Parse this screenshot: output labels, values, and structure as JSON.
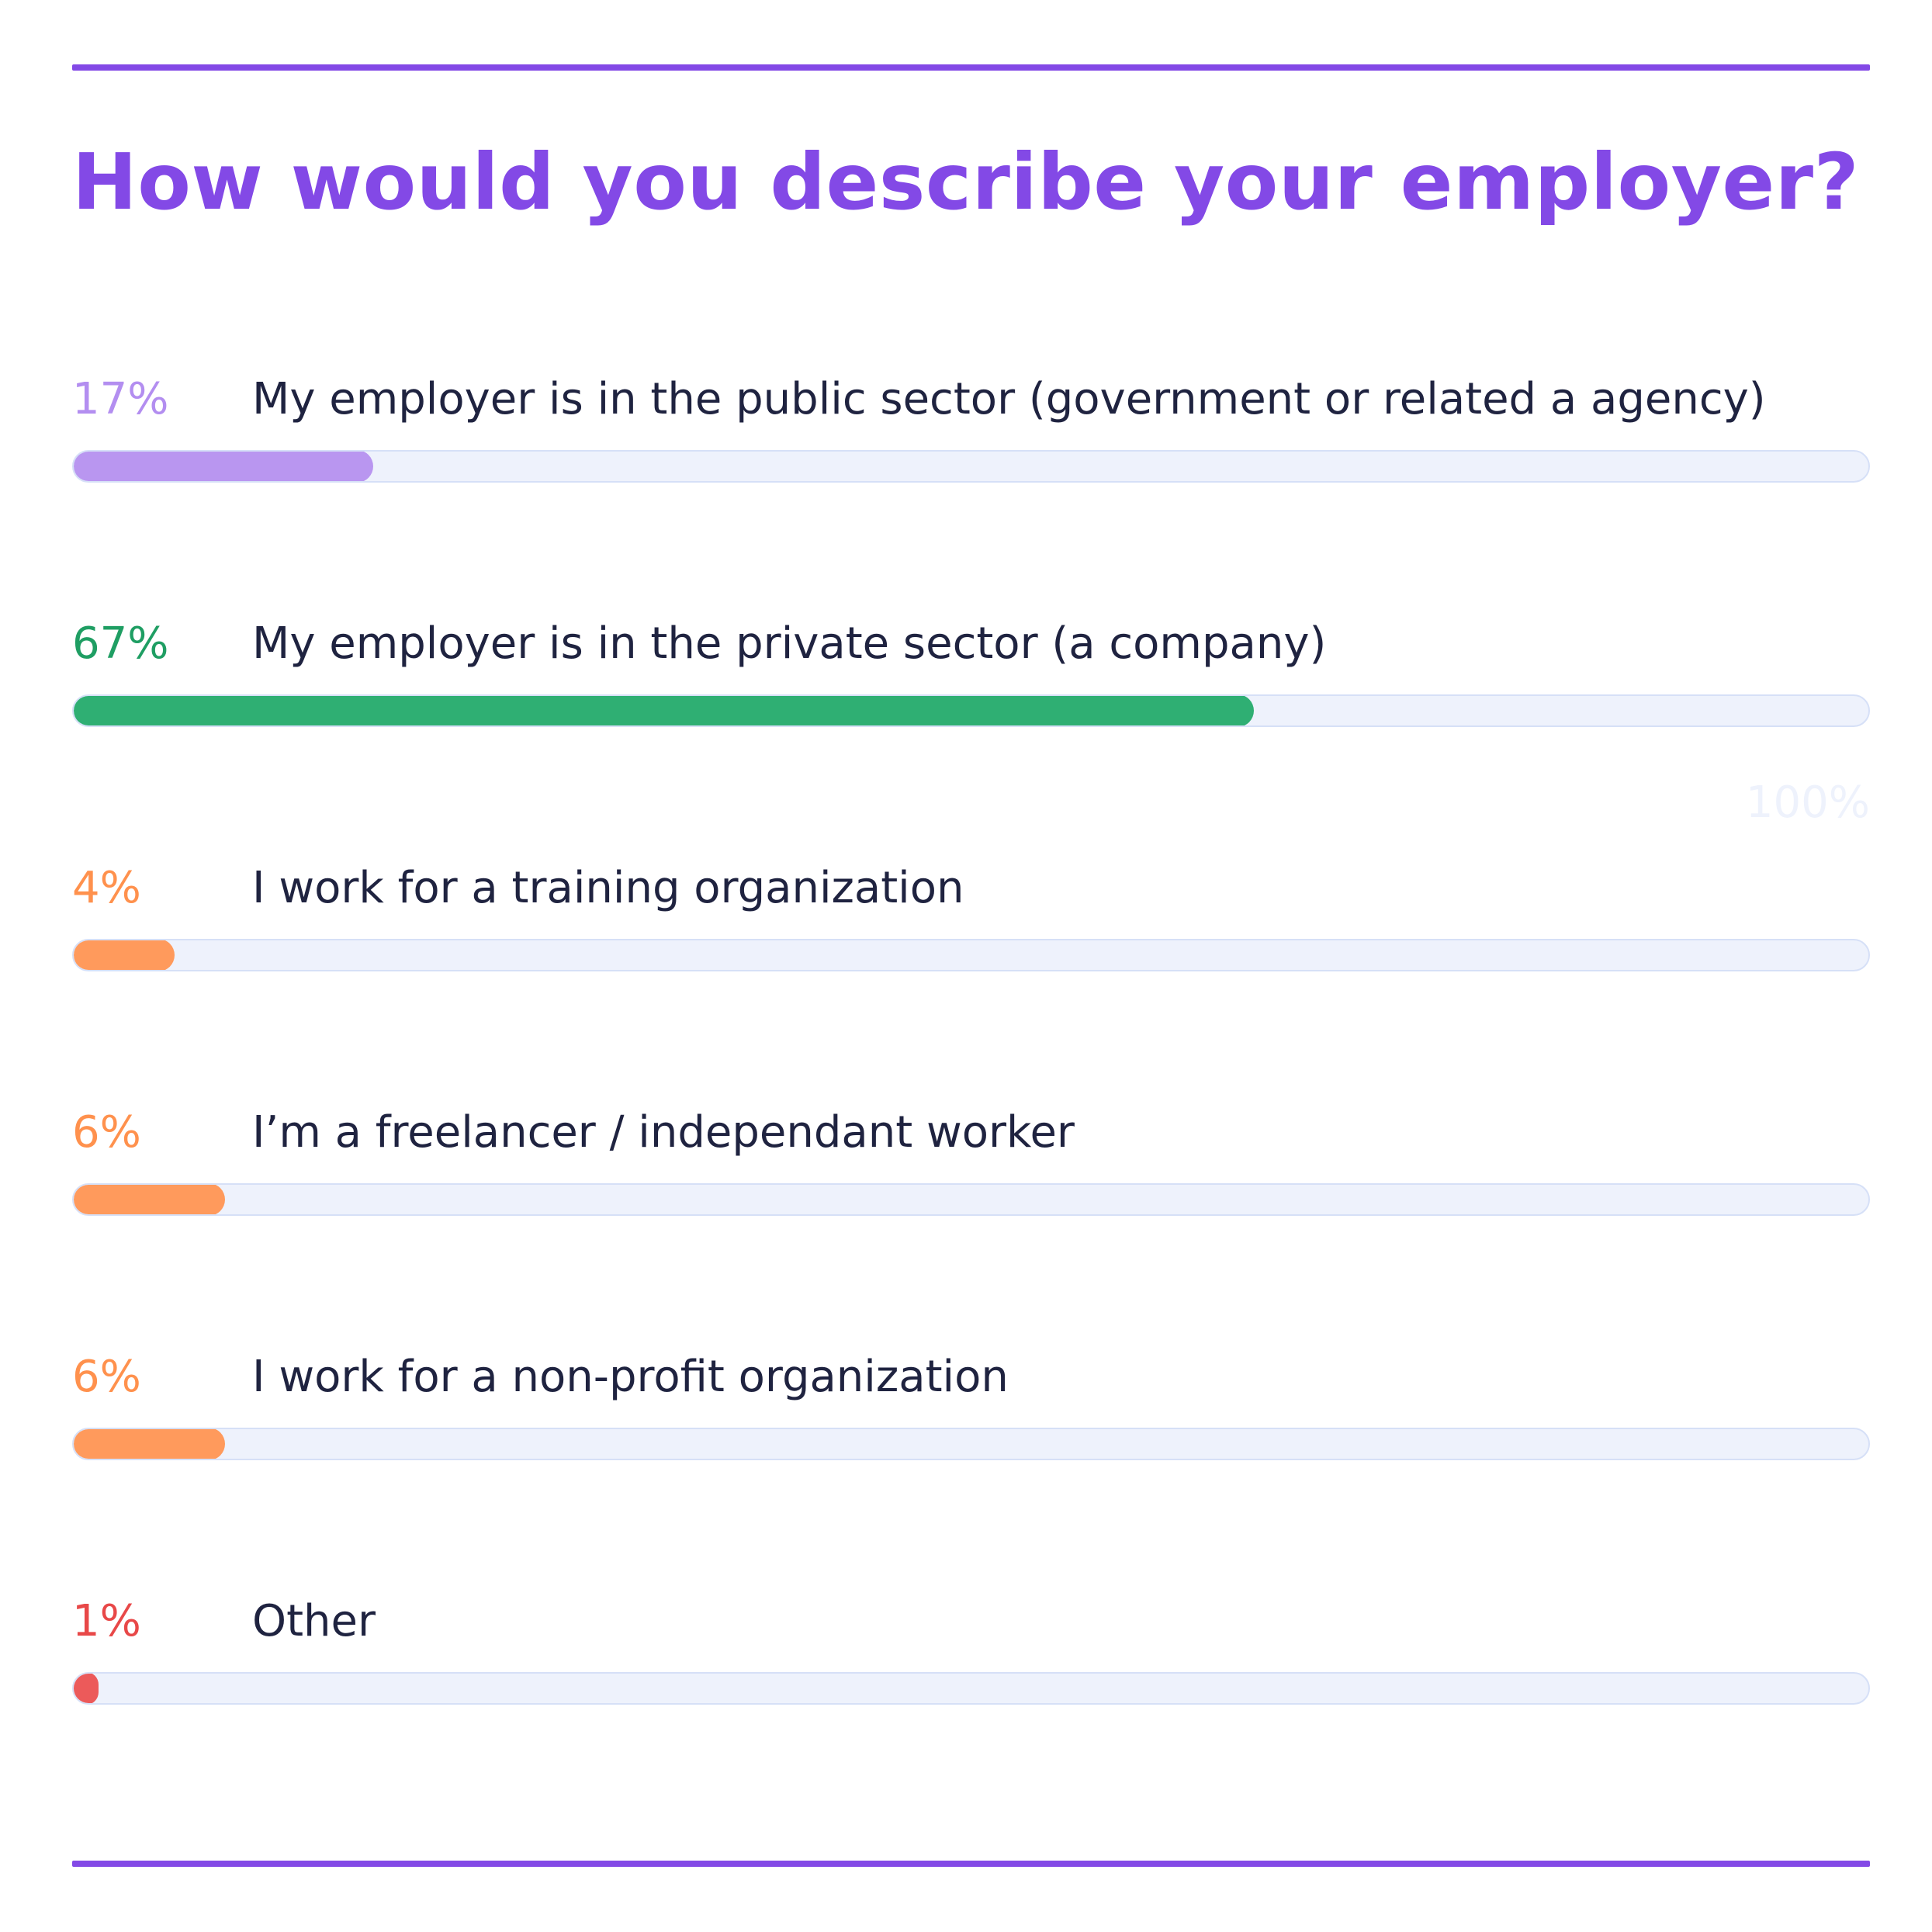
{
  "title": "How would you describe your employer?",
  "scale_max_label": "100%",
  "colors": {
    "accent": "#8349e6",
    "track": "#eef2fc"
  },
  "chart_data": {
    "type": "bar",
    "orientation": "horizontal",
    "title": "How would you describe your employer?",
    "xlim": [
      0,
      100
    ],
    "unit": "%",
    "grid": false,
    "categories": [
      "My employer is in the public sector (government or related a agency)",
      "My employer is in the private sector (a company)",
      "I work for a training organization",
      "I’m a freelancer / independant worker",
      "I work for a non-profit organization",
      "Other"
    ],
    "values": [
      17,
      67,
      4,
      6,
      6,
      1
    ],
    "rows": [
      {
        "pct_label": "17%",
        "label": "My employer is in the public sector (government or related a agency)",
        "value": 17,
        "color": "#b996f0",
        "text_color": "#b38ef0"
      },
      {
        "pct_label": "67%",
        "label": "My employer is in the private sector (a company)",
        "value": 67,
        "color": "#2faf73",
        "text_color": "#1f9e63"
      },
      {
        "pct_label": "4%",
        "label": "I work for a training organization",
        "value": 4,
        "color": "#ff9a5c",
        "text_color": "#ff914d"
      },
      {
        "pct_label": "6%",
        "label": "I’m a freelancer / independant worker",
        "value": 6,
        "color": "#ff9a5c",
        "text_color": "#ff914d"
      },
      {
        "pct_label": "6%",
        "label": "I work for a non-profit organization",
        "value": 6,
        "color": "#ff9a5c",
        "text_color": "#ff914d"
      },
      {
        "pct_label": "1%",
        "label": "Other",
        "value": 1,
        "color": "#ec5a5a",
        "text_color": "#e84848"
      }
    ]
  }
}
